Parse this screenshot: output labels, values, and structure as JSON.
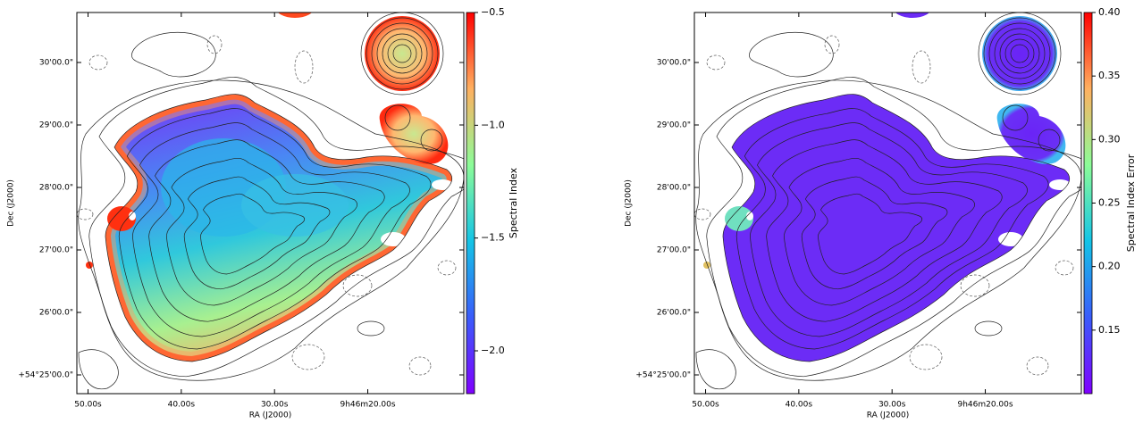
{
  "chart_data": [
    {
      "type": "image",
      "xlabel": "RA (J2000)",
      "ylabel": "Dec (J2000)",
      "xlim": [
        51.2,
        9.7
      ],
      "xticks": [
        {
          "value": 50,
          "label": "50.00s"
        },
        {
          "value": 40,
          "label": "40.00s"
        },
        {
          "value": 30,
          "label": "30.00s"
        },
        {
          "value": 20,
          "label": "9h46m20.00s"
        }
      ],
      "ylim": [
        24.7,
        30.8
      ],
      "yticks": [
        {
          "value": 30,
          "label": "30'00.0\""
        },
        {
          "value": 29,
          "label": "29'00.0\""
        },
        {
          "value": 28,
          "label": "28'00.0\""
        },
        {
          "value": 27,
          "label": "27'00.0\""
        },
        {
          "value": 26,
          "label": "26'00.0\""
        },
        {
          "value": 25,
          "label": "+54°25'00.0\""
        }
      ],
      "colorbar": {
        "label": "Spectral Index",
        "colormap": "rainbow",
        "lim": [
          -2.19,
          -0.5
        ],
        "ticks": [
          {
            "value": -0.5,
            "label": "−0.5"
          },
          {
            "value": -1.0,
            "label": "−1.0"
          },
          {
            "value": -1.5,
            "label": "−1.5"
          },
          {
            "value": -2.0,
            "label": "−2.0"
          }
        ]
      }
    },
    {
      "type": "image",
      "xlabel": "RA (J2000)",
      "ylabel": "Dec (J2000)",
      "xlim": [
        51.2,
        9.7
      ],
      "xticks": [
        {
          "value": 50,
          "label": "50.00s"
        },
        {
          "value": 40,
          "label": "40.00s"
        },
        {
          "value": 30,
          "label": "30.00s"
        },
        {
          "value": 20,
          "label": "9h46m20.00s"
        }
      ],
      "ylim": [
        24.7,
        30.8
      ],
      "yticks": [
        {
          "value": 30,
          "label": "30'00.0\""
        },
        {
          "value": 29,
          "label": "29'00.0\""
        },
        {
          "value": 28,
          "label": "28'00.0\""
        },
        {
          "value": 27,
          "label": "27'00.0\""
        },
        {
          "value": 26,
          "label": "26'00.0\""
        },
        {
          "value": 25,
          "label": "+54°25'00.0\""
        }
      ],
      "colorbar": {
        "label": "Spectral Index Error",
        "colormap": "rainbow",
        "lim": [
          0.1,
          0.4
        ],
        "ticks": [
          {
            "value": 0.4,
            "label": "0.40"
          },
          0.35,
          {
            "value": 0.3,
            "label": "0.30"
          },
          {
            "value": 0.25,
            "label": "0.25"
          },
          {
            "value": 0.2,
            "label": "0.20"
          },
          0.15
        ]
      }
    }
  ]
}
